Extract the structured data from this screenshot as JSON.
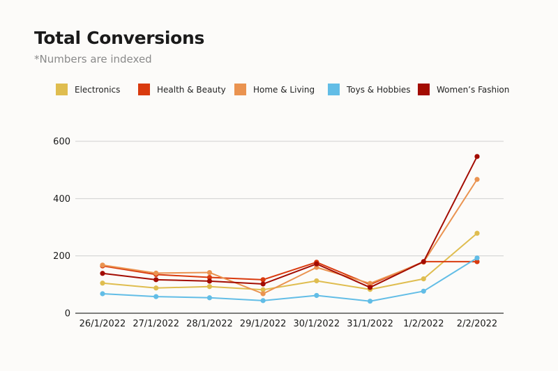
{
  "title": "Total Conversions",
  "subtitle": "*Numbers are indexed",
  "chart_data": {
    "type": "line",
    "categories": [
      "26/1/2022",
      "27/1/2022",
      "28/1/2022",
      "29/1/2022",
      "30/1/2022",
      "31/1/2022",
      "1/2/2022",
      "2/2/2022"
    ],
    "ylim": [
      0,
      600
    ],
    "yticks": [
      0,
      200,
      400,
      600
    ],
    "grid": true,
    "legend_position": "top",
    "series": [
      {
        "name": "Electronics",
        "color": "#dfbd4f",
        "values": [
          105,
          88,
          93,
          82,
          113,
          83,
          120,
          279
        ]
      },
      {
        "name": "Health & Beauty",
        "color": "#d93a0e",
        "values": [
          165,
          135,
          125,
          117,
          178,
          100,
          180,
          180
        ]
      },
      {
        "name": "Home & Living",
        "color": "#ea9350",
        "values": [
          168,
          140,
          142,
          68,
          160,
          104,
          178,
          467
        ]
      },
      {
        "name": "Toys & Hobbies",
        "color": "#62bde6",
        "values": [
          68,
          58,
          54,
          44,
          62,
          42,
          77,
          193
        ]
      },
      {
        "name": "Women’s Fashion",
        "color": "#a30c02",
        "values": [
          139,
          117,
          112,
          102,
          172,
          90,
          180,
          547
        ]
      }
    ]
  }
}
